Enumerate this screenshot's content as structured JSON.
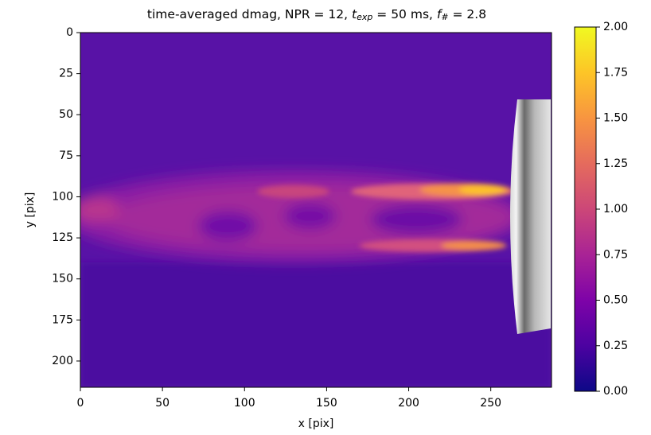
{
  "chart_data": {
    "type": "heatmap",
    "title": [
      "time-averaged dmag, NPR = 12, ",
      "t",
      "exp",
      " = 50 ms, ",
      "f",
      "#",
      " = 2.8"
    ],
    "x_label": "x [pix]",
    "y_label": "y [pix]",
    "xlim": [
      0,
      287
    ],
    "ylim": [
      216,
      0
    ],
    "xticks": [
      0,
      50,
      100,
      150,
      200,
      250
    ],
    "yticks": [
      0,
      25,
      50,
      75,
      100,
      125,
      150,
      175,
      200
    ],
    "colormap": "plasma",
    "clim": [
      0,
      2
    ],
    "cticks": [
      {
        "value": 0,
        "label": "0.00"
      },
      {
        "value": 0.25,
        "label": "0.25"
      },
      {
        "value": 0.5,
        "label": "0.50"
      },
      {
        "value": 0.75,
        "label": "0.75"
      },
      {
        "value": 1,
        "label": "1.00"
      },
      {
        "value": 1.25,
        "label": "1.25"
      },
      {
        "value": 1.5,
        "label": "1.50"
      },
      {
        "value": 1.75,
        "label": "1.75"
      },
      {
        "value": 2,
        "label": "2.00"
      }
    ]
  }
}
